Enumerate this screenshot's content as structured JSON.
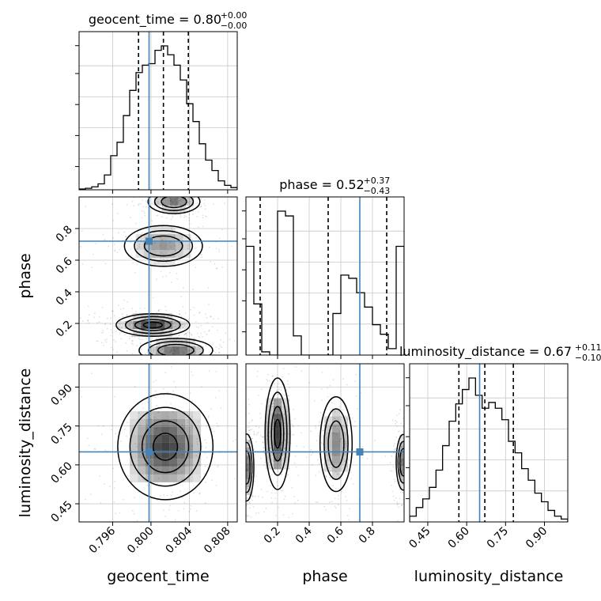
{
  "chart_data": {
    "type": "corner",
    "colors": {
      "truth": "#4682b4",
      "line": "#000000",
      "grid": "#c8c8c8",
      "density": "#000000"
    },
    "truths": {
      "geocent_time": 0.7998,
      "phase": 0.72,
      "luminosity_distance": 0.65
    },
    "parameters": [
      {
        "name": "geocent_time",
        "label": "geocent_time",
        "range": [
          0.7925,
          0.809
        ],
        "ticks": [
          0.796,
          0.8,
          0.804,
          0.808
        ],
        "tick_labels": [
          "0.796",
          "0.800",
          "0.804",
          "0.808"
        ],
        "title": {
          "main": "geocent_time = 0.80",
          "sup": "+0.00",
          "sub": "−0.00"
        },
        "quantiles": [
          0.7987,
          0.8013,
          0.8039
        ],
        "hist": [
          0.005,
          0.01,
          0.02,
          0.04,
          0.1,
          0.23,
          0.32,
          0.5,
          0.67,
          0.79,
          0.84,
          0.85,
          0.94,
          0.97,
          0.91,
          0.84,
          0.74,
          0.58,
          0.46,
          0.31,
          0.2,
          0.13,
          0.06,
          0.03,
          0.015
        ]
      },
      {
        "name": "phase",
        "label": "phase",
        "range": [
          0.0,
          1.0
        ],
        "ticks": [
          0.2,
          0.4,
          0.6,
          0.8
        ],
        "tick_labels": [
          "0.2",
          "0.4",
          "0.6",
          "0.8"
        ],
        "title": {
          "main": "phase = 0.52",
          "sup": "+0.37",
          "sub": "−0.43"
        },
        "quantiles": [
          0.09,
          0.52,
          0.89
        ],
        "hist": [
          0.68,
          0.32,
          0.02,
          0.0,
          0.9,
          0.87,
          0.12,
          0.0,
          0.0,
          0.0,
          0.0,
          0.26,
          0.5,
          0.48,
          0.39,
          0.3,
          0.19,
          0.13,
          0.04,
          0.68
        ]
      },
      {
        "name": "luminosity_distance",
        "label": "luminosity_distance",
        "range": [
          0.38,
          0.99
        ],
        "ticks": [
          0.45,
          0.6,
          0.75,
          0.9
        ],
        "tick_labels": [
          "0.45",
          "0.60",
          "0.75",
          "0.90"
        ],
        "title": {
          "main": "luminosity_distance = 0.67",
          "sup": "+0.11",
          "sub": "−0.10"
        },
        "quantiles": [
          0.57,
          0.67,
          0.78
        ],
        "hist": [
          0.04,
          0.1,
          0.16,
          0.24,
          0.36,
          0.53,
          0.7,
          0.82,
          0.92,
          1.0,
          0.88,
          0.79,
          0.83,
          0.79,
          0.71,
          0.56,
          0.48,
          0.37,
          0.29,
          0.2,
          0.14,
          0.08,
          0.04,
          0.02
        ]
      }
    ],
    "panels_2d": [
      {
        "x": "geocent_time",
        "y": "phase",
        "blobs": [
          {
            "cx": 0.8024,
            "cy": 0.97,
            "sx": 0.0012,
            "sy": 0.035,
            "w": 0.7
          },
          {
            "cx": 0.8013,
            "cy": 0.69,
            "sx": 0.0018,
            "sy": 0.06,
            "w": 0.55
          },
          {
            "cx": 0.8002,
            "cy": 0.19,
            "sx": 0.0017,
            "sy": 0.033,
            "w": 1.0
          },
          {
            "cx": 0.8026,
            "cy": 0.03,
            "sx": 0.0017,
            "sy": 0.035,
            "w": 0.75
          }
        ]
      },
      {
        "x": "geocent_time",
        "y": "luminosity_distance",
        "blobs": [
          {
            "cx": 0.8015,
            "cy": 0.67,
            "sx": 0.0022,
            "sy": 0.095,
            "w": 1.0
          }
        ]
      },
      {
        "x": "phase",
        "y": "luminosity_distance",
        "blobs": [
          {
            "cx": 0.005,
            "cy": 0.59,
            "sx": 0.02,
            "sy": 0.06,
            "w": 0.7
          },
          {
            "cx": 0.2,
            "cy": 0.72,
            "sx": 0.035,
            "sy": 0.1,
            "w": 1.0
          },
          {
            "cx": 0.57,
            "cy": 0.68,
            "sx": 0.045,
            "sy": 0.085,
            "w": 0.62
          },
          {
            "cx": 0.995,
            "cy": 0.61,
            "sx": 0.02,
            "sy": 0.05,
            "w": 0.7
          }
        ]
      }
    ]
  }
}
